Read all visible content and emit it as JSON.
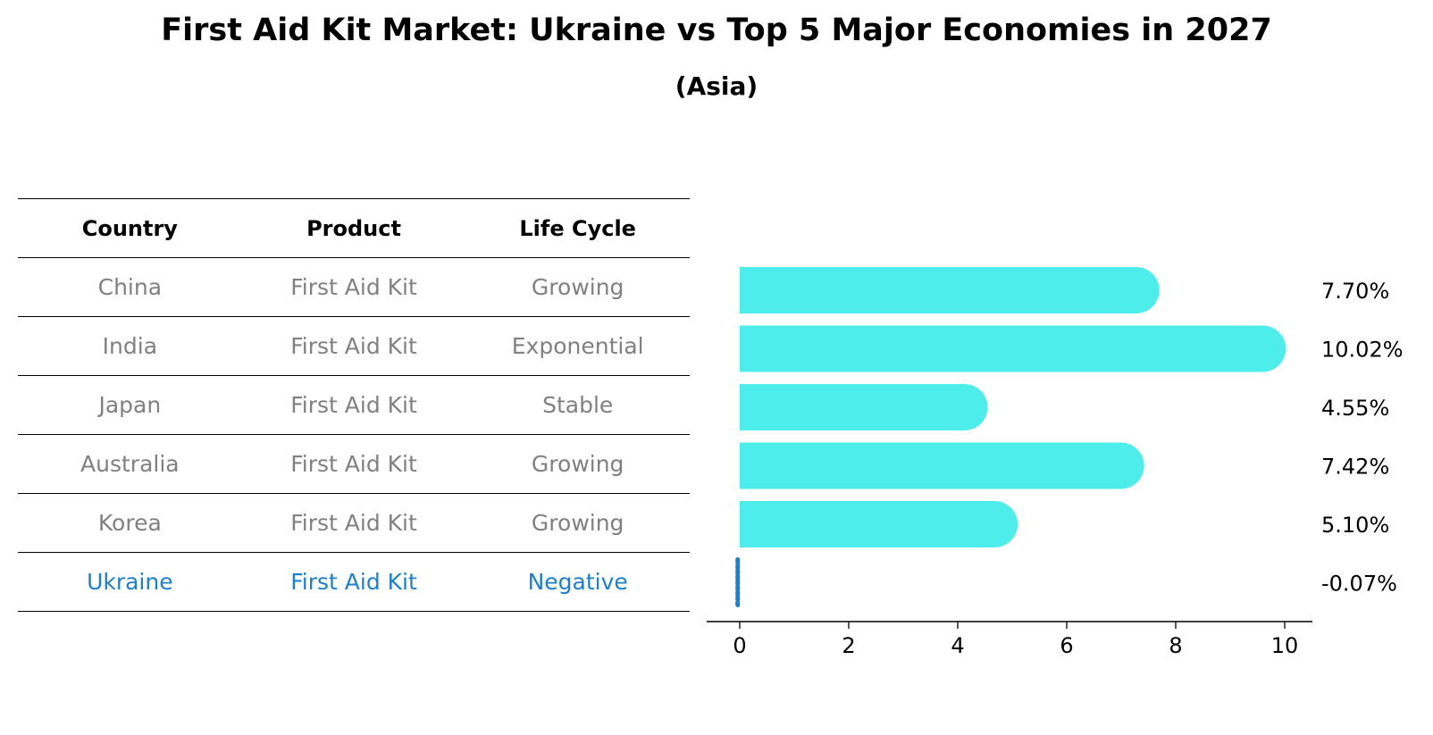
{
  "title": "First Aid Kit Market: Ukraine vs Top 5 Major Economies in 2027",
  "subtitle": "(Asia)",
  "table": {
    "headers": [
      "Country",
      "Product",
      "Life Cycle"
    ],
    "rows": [
      {
        "country": "China",
        "product": "First Aid Kit",
        "life_cycle": "Growing"
      },
      {
        "country": "India",
        "product": "First Aid Kit",
        "life_cycle": "Exponential"
      },
      {
        "country": "Japan",
        "product": "First Aid Kit",
        "life_cycle": "Stable"
      },
      {
        "country": "Australia",
        "product": "First Aid Kit",
        "life_cycle": "Growing"
      },
      {
        "country": "Korea",
        "product": "First Aid Kit",
        "life_cycle": "Growing"
      },
      {
        "country": "Ukraine",
        "product": "First Aid Kit",
        "life_cycle": "Negative"
      }
    ],
    "highlight_row": 5
  },
  "colors": {
    "bar": "#4dedec",
    "highlight": "#1a7fd0",
    "muted_text": "#808080"
  },
  "chart_data": {
    "type": "bar",
    "orientation": "horizontal",
    "categories": [
      "China",
      "India",
      "Japan",
      "Australia",
      "Korea",
      "Ukraine"
    ],
    "values": [
      7.7,
      10.02,
      4.55,
      7.42,
      5.1,
      -0.07
    ],
    "value_labels": [
      "7.70%",
      "10.02%",
      "4.55%",
      "7.42%",
      "5.10%",
      "-0.07%"
    ],
    "xlim": [
      -0.6,
      10.5
    ],
    "xticks": [
      0,
      2,
      4,
      6,
      8,
      10
    ],
    "tick_labels": [
      "0",
      "2",
      "4",
      "6",
      "8",
      "10"
    ],
    "grid": false,
    "highlight_category": "Ukraine"
  }
}
